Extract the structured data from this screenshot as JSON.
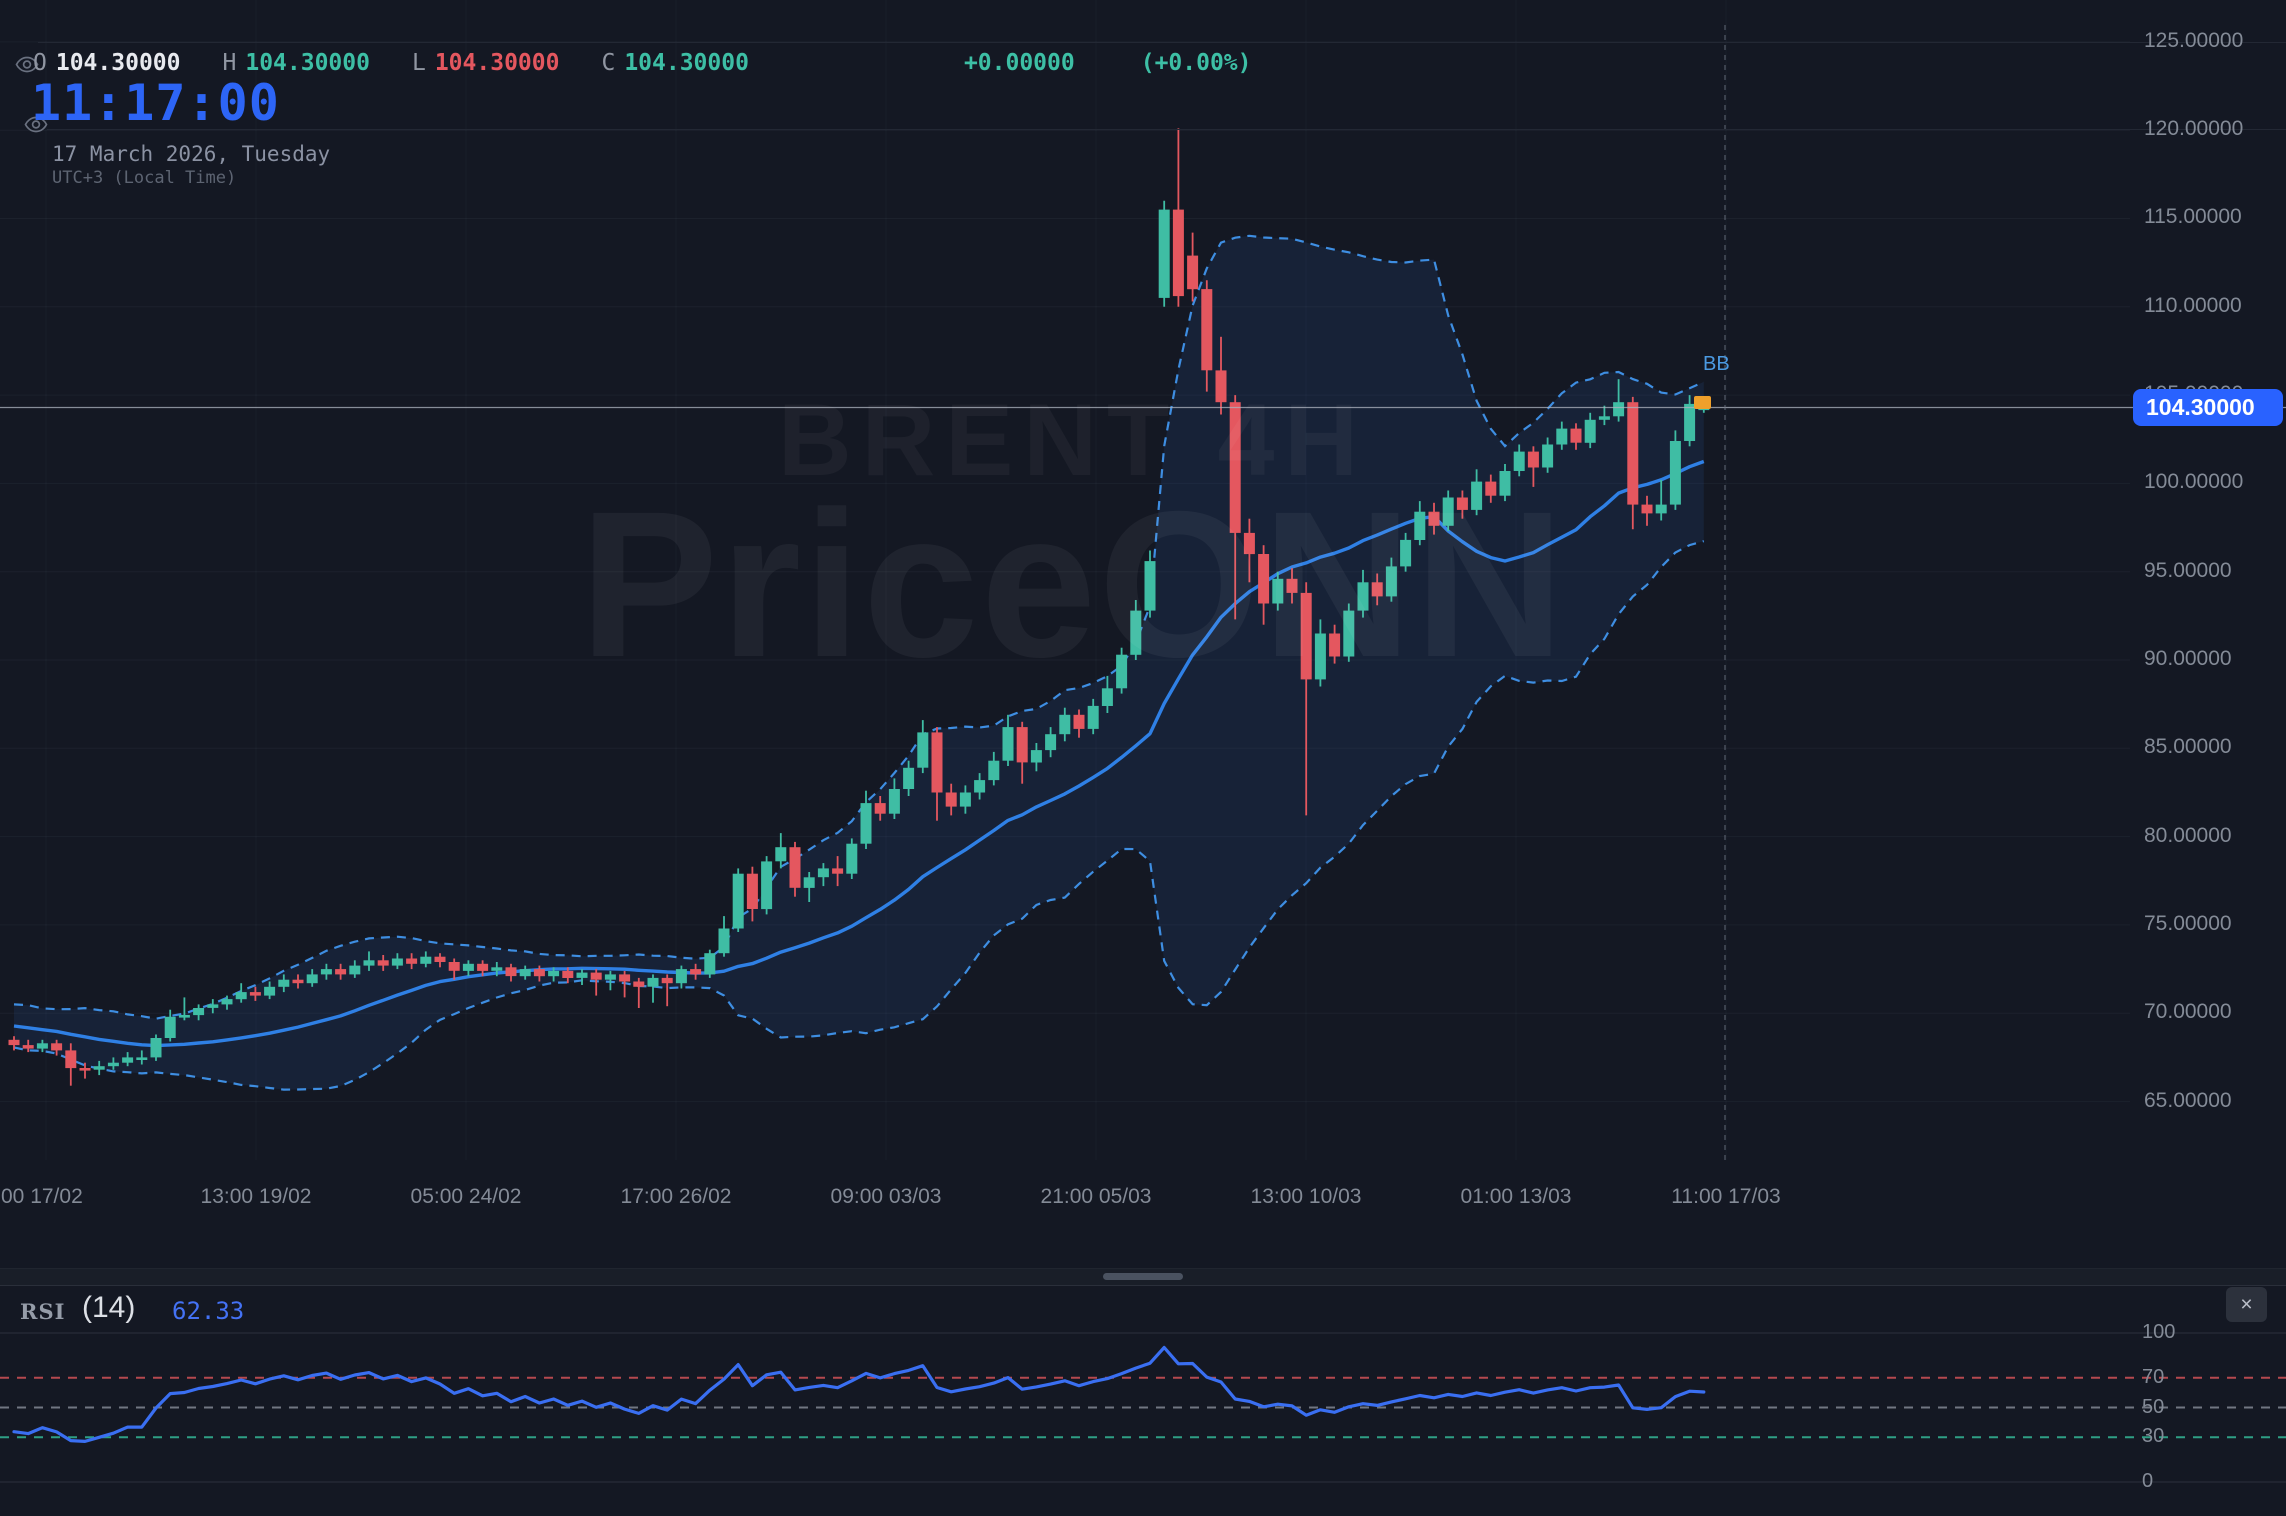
{
  "colors": {
    "bg": "#141823",
    "up": "#3fbda4",
    "down": "#e4575f",
    "sma": "#2f80e5",
    "bb_line": "#3e8ee2",
    "bb_fill": "rgba(45,90,160,0.16)",
    "accent_blue": "#2962ff",
    "clock_blue": "#2d65f6",
    "rsi_line": "#3a6ff2",
    "overbought_red": "#b5494f",
    "oversold_teal": "#2e9f85",
    "mid_gray": "#9096a2",
    "grid": "rgba(140,150,170,0.07)",
    "grid_v": "rgba(140,150,170,0.05)",
    "price_line": "#aeb4bf",
    "marker_orange": "#efa02b",
    "axis_text": "#848b97"
  },
  "header": {
    "ohlc": {
      "o_label": "O",
      "o": "104.30000",
      "h_label": "H",
      "h": "104.30000",
      "l_label": "L",
      "l": "104.30000",
      "c_label": "C",
      "c": "104.30000",
      "change": "+0.00000",
      "change_pct": "(+0.00%)"
    },
    "clock": "11:17:00",
    "date": "17 March 2026, Tuesday",
    "timezone": "UTC+3 (Local Time)"
  },
  "watermark": {
    "symbol_tf": "BRENT 4H",
    "brand": "PriceONN"
  },
  "price_axis": {
    "tick_values": [
      125,
      120,
      115,
      110,
      105,
      100,
      95,
      90,
      85,
      80,
      75,
      70,
      65
    ],
    "decimals": 5,
    "current_price": 104.3,
    "current_price_label": "104.30000"
  },
  "chart_data": {
    "type": "candlestick",
    "title": "BRENT 4H",
    "symbol": "BRENT",
    "timeframe": "4H",
    "ylim": [
      63,
      127.5
    ],
    "x_tick_labels": [
      "00 17/02",
      "13:00 19/02",
      "05:00 24/02",
      "17:00 26/02",
      "09:00 03/03",
      "21:00 05/03",
      "13:00 10/03",
      "01:00 13/03",
      "11:00 17/03"
    ],
    "prehistory_closes": [
      70.6,
      70.1,
      70.4,
      69.8,
      70.2,
      69.6,
      70.0,
      69.4,
      69.7,
      69.2,
      69.5,
      69.0,
      69.3,
      68.8,
      69.1,
      68.7,
      68.9,
      68.5,
      68.7,
      68.5
    ],
    "candles": [
      [
        68.5,
        68.7,
        67.9,
        68.2
      ],
      [
        68.2,
        68.5,
        67.8,
        68.0
      ],
      [
        68.0,
        68.5,
        67.8,
        68.3
      ],
      [
        68.3,
        68.5,
        67.6,
        67.9
      ],
      [
        67.9,
        68.3,
        65.9,
        66.9
      ],
      [
        66.9,
        67.2,
        66.3,
        66.8
      ],
      [
        66.8,
        67.3,
        66.5,
        67.0
      ],
      [
        67.0,
        67.5,
        66.8,
        67.2
      ],
      [
        67.2,
        67.8,
        67.0,
        67.5
      ],
      [
        67.5,
        67.9,
        67.1,
        67.5
      ],
      [
        67.5,
        68.8,
        67.3,
        68.6
      ],
      [
        68.6,
        70.2,
        68.4,
        69.8
      ],
      [
        69.8,
        70.9,
        69.6,
        69.9
      ],
      [
        69.9,
        70.5,
        69.6,
        70.3
      ],
      [
        70.3,
        70.8,
        70.0,
        70.5
      ],
      [
        70.5,
        71.0,
        70.2,
        70.8
      ],
      [
        70.8,
        71.7,
        70.6,
        71.2
      ],
      [
        71.2,
        71.5,
        70.7,
        71.0
      ],
      [
        71.0,
        71.8,
        70.8,
        71.5
      ],
      [
        71.5,
        72.2,
        71.2,
        71.9
      ],
      [
        71.9,
        72.2,
        71.4,
        71.7
      ],
      [
        71.7,
        72.5,
        71.5,
        72.2
      ],
      [
        72.2,
        72.8,
        71.9,
        72.5
      ],
      [
        72.5,
        72.8,
        71.9,
        72.2
      ],
      [
        72.2,
        73.0,
        72.0,
        72.7
      ],
      [
        72.7,
        73.5,
        72.4,
        73.0
      ],
      [
        73.0,
        73.3,
        72.4,
        72.7
      ],
      [
        72.7,
        73.4,
        72.5,
        73.1
      ],
      [
        73.1,
        73.4,
        72.5,
        72.8
      ],
      [
        72.8,
        73.5,
        72.6,
        73.2
      ],
      [
        73.2,
        73.4,
        72.6,
        72.9
      ],
      [
        72.9,
        73.1,
        71.9,
        72.4
      ],
      [
        72.4,
        73.0,
        72.1,
        72.8
      ],
      [
        72.8,
        73.0,
        72.1,
        72.4
      ],
      [
        72.4,
        72.9,
        72.1,
        72.6
      ],
      [
        72.6,
        72.8,
        71.8,
        72.1
      ],
      [
        72.1,
        72.7,
        71.9,
        72.5
      ],
      [
        72.5,
        72.7,
        71.8,
        72.1
      ],
      [
        72.1,
        72.6,
        71.8,
        72.4
      ],
      [
        72.4,
        72.6,
        71.7,
        72.0
      ],
      [
        72.0,
        72.5,
        71.6,
        72.3
      ],
      [
        72.3,
        72.5,
        71.0,
        71.9
      ],
      [
        71.9,
        72.4,
        71.3,
        72.2
      ],
      [
        72.2,
        72.4,
        70.9,
        71.8
      ],
      [
        71.8,
        72.0,
        70.3,
        71.5
      ],
      [
        71.5,
        72.2,
        70.6,
        72.0
      ],
      [
        72.0,
        72.2,
        70.4,
        71.7
      ],
      [
        71.7,
        72.7,
        71.4,
        72.5
      ],
      [
        72.5,
        72.8,
        71.9,
        72.2
      ],
      [
        72.2,
        73.6,
        72.0,
        73.4
      ],
      [
        73.4,
        75.5,
        73.2,
        74.8
      ],
      [
        74.8,
        78.2,
        74.6,
        77.9
      ],
      [
        77.9,
        78.3,
        75.2,
        75.9
      ],
      [
        75.9,
        78.9,
        75.6,
        78.6
      ],
      [
        78.6,
        80.2,
        78.2,
        79.4
      ],
      [
        79.4,
        79.7,
        76.6,
        77.1
      ],
      [
        77.1,
        78.0,
        76.3,
        77.7
      ],
      [
        77.7,
        78.5,
        77.2,
        78.2
      ],
      [
        78.2,
        78.9,
        77.2,
        77.9
      ],
      [
        77.9,
        79.9,
        77.6,
        79.6
      ],
      [
        79.6,
        82.6,
        79.3,
        81.9
      ],
      [
        81.9,
        82.3,
        80.9,
        81.3
      ],
      [
        81.3,
        83.3,
        81.0,
        82.7
      ],
      [
        82.7,
        84.3,
        82.3,
        83.9
      ],
      [
        83.9,
        86.6,
        83.6,
        85.9
      ],
      [
        85.9,
        86.2,
        80.9,
        82.5
      ],
      [
        82.5,
        83.0,
        81.2,
        81.7
      ],
      [
        81.7,
        82.9,
        81.3,
        82.5
      ],
      [
        82.5,
        83.6,
        82.1,
        83.2
      ],
      [
        83.2,
        84.8,
        82.9,
        84.3
      ],
      [
        84.3,
        86.9,
        84.0,
        86.2
      ],
      [
        86.2,
        86.5,
        83.0,
        84.2
      ],
      [
        84.2,
        85.3,
        83.7,
        84.9
      ],
      [
        84.9,
        86.2,
        84.5,
        85.8
      ],
      [
        85.8,
        87.3,
        85.4,
        86.9
      ],
      [
        86.9,
        87.2,
        85.6,
        86.1
      ],
      [
        86.1,
        87.8,
        85.8,
        87.4
      ],
      [
        87.4,
        89.1,
        87.0,
        88.4
      ],
      [
        88.4,
        90.7,
        88.1,
        90.3
      ],
      [
        90.3,
        93.4,
        90.0,
        92.8
      ],
      [
        92.8,
        96.2,
        92.4,
        95.6
      ],
      [
        110.5,
        116.0,
        110.0,
        115.5
      ],
      [
        115.5,
        120.1,
        110.0,
        110.6
      ],
      [
        112.9,
        114.2,
        110.3,
        111.0
      ],
      [
        111.0,
        111.5,
        105.2,
        106.4
      ],
      [
        106.4,
        108.3,
        103.9,
        104.6
      ],
      [
        104.6,
        105.0,
        92.3,
        97.2
      ],
      [
        97.2,
        98.0,
        94.4,
        96.0
      ],
      [
        96.0,
        96.5,
        92.0,
        93.2
      ],
      [
        93.2,
        95.0,
        92.8,
        94.6
      ],
      [
        94.6,
        95.2,
        93.2,
        93.8
      ],
      [
        93.8,
        94.4,
        81.2,
        88.9
      ],
      [
        88.9,
        92.3,
        88.5,
        91.5
      ],
      [
        91.5,
        92.0,
        89.8,
        90.2
      ],
      [
        90.2,
        93.2,
        89.9,
        92.8
      ],
      [
        92.8,
        95.1,
        92.4,
        94.4
      ],
      [
        94.4,
        94.9,
        93.1,
        93.6
      ],
      [
        93.6,
        95.8,
        93.3,
        95.3
      ],
      [
        95.3,
        97.2,
        95.0,
        96.8
      ],
      [
        96.8,
        99.0,
        96.5,
        98.4
      ],
      [
        98.4,
        98.9,
        97.1,
        97.6
      ],
      [
        97.6,
        99.6,
        97.3,
        99.2
      ],
      [
        99.2,
        99.6,
        98.0,
        98.5
      ],
      [
        98.5,
        100.8,
        98.2,
        100.1
      ],
      [
        100.1,
        100.5,
        98.9,
        99.3
      ],
      [
        99.3,
        101.1,
        99.0,
        100.7
      ],
      [
        100.7,
        102.2,
        100.4,
        101.8
      ],
      [
        101.8,
        102.1,
        99.8,
        100.9
      ],
      [
        100.9,
        102.6,
        100.6,
        102.2
      ],
      [
        102.2,
        103.5,
        101.9,
        103.1
      ],
      [
        103.1,
        103.4,
        101.9,
        102.3
      ],
      [
        102.3,
        104.0,
        102.0,
        103.6
      ],
      [
        103.6,
        104.4,
        103.3,
        103.8
      ],
      [
        103.8,
        105.9,
        103.5,
        104.6
      ],
      [
        104.6,
        104.9,
        97.4,
        98.8
      ],
      [
        98.8,
        99.3,
        97.6,
        98.3
      ],
      [
        98.3,
        100.2,
        97.9,
        98.8
      ],
      [
        98.8,
        103.0,
        98.5,
        102.4
      ],
      [
        102.4,
        105.0,
        102.1,
        104.5
      ],
      [
        104.2,
        104.6,
        104.0,
        104.3
      ]
    ],
    "indicators": {
      "bollinger": {
        "period": 20,
        "stdev_mult": 2
      },
      "sma": {
        "period": 20
      },
      "rsi": {
        "period": 14,
        "value": 62.33
      }
    }
  },
  "rsi_panel": {
    "title": "RSI",
    "period_label": "(14)",
    "value_label": "62.33",
    "levels": [
      100,
      70,
      50,
      30,
      0
    ],
    "dashed_levels": {
      "overbought": 70,
      "middle": 50,
      "oversold": 30
    },
    "close_button": "×"
  },
  "markers": {
    "bb_label": "BB"
  }
}
